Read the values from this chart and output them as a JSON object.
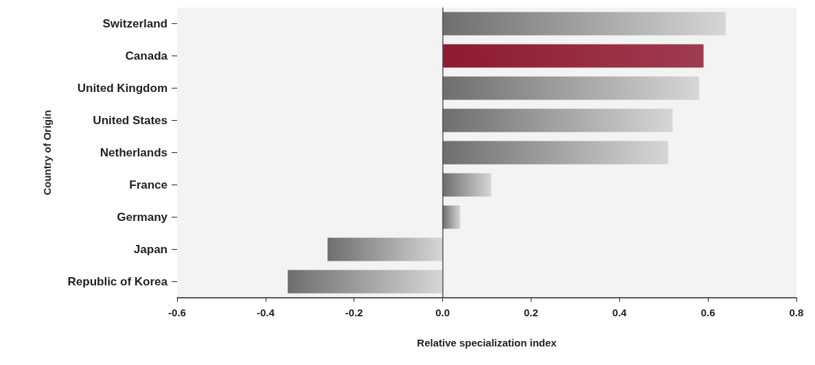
{
  "chart_data": {
    "type": "bar",
    "orientation": "horizontal",
    "xlabel": "Relative specialization index",
    "ylabel": "Country of Origin",
    "categories": [
      "Switzerland",
      "Canada",
      "United Kingdom",
      "United States",
      "Netherlands",
      "France",
      "Germany",
      "Japan",
      "Republic of Korea"
    ],
    "values": [
      0.64,
      0.59,
      0.58,
      0.52,
      0.51,
      0.11,
      0.04,
      -0.26,
      -0.35
    ],
    "colors": [
      "#6e6e6e",
      "#8e1a30",
      "#6e6e6e",
      "#6e6e6e",
      "#6e6e6e",
      "#6e6e6e",
      "#6e6e6e",
      "#6e6e6e",
      "#6e6e6e"
    ],
    "xlim": [
      -0.6,
      0.8
    ],
    "xticks": [
      -0.6,
      -0.4,
      -0.2,
      {
        "value": 0,
        "label": "0.0"
      },
      0.2,
      0.4,
      0.6,
      0.8
    ],
    "ref_lines": [
      {
        "axis": "x",
        "value": 0,
        "color": "#555555"
      }
    ],
    "grid": false
  }
}
